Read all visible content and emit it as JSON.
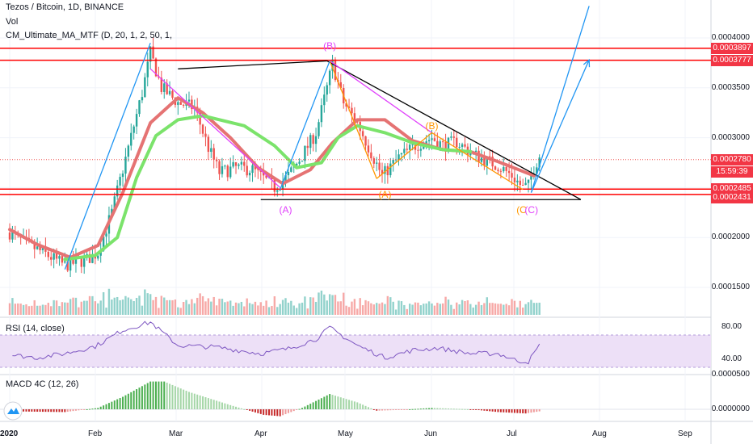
{
  "header": {
    "title": "Tezos / Bitcoin, 1D, BINANCE",
    "vol": "Vol",
    "ma_indicator": "CM_Ultimate_MA_MTF (D, 20, 1, 2, 50, 1,"
  },
  "panes": {
    "rsi_label": "RSI (14, close)",
    "macd_label": "MACD 4C (12, 26)"
  },
  "colors": {
    "up": "#26a69a",
    "down": "#ef5350",
    "ma_fast": "#e57373",
    "ma_slow": "#7be36b",
    "level_line": "#ff0000",
    "trend_line": "#000000",
    "projection": "#2196f3",
    "wave_magenta": "#e040fb",
    "wave_orange": "#ff9800",
    "rsi_line": "#7e57c2",
    "rsi_band": "#ede0f7"
  },
  "chart_data": [
    {
      "type": "candlestick",
      "title": "Tezos / Bitcoin, 1D, BINANCE",
      "x_ticks": [
        "2020",
        "Feb",
        "Mar",
        "Apr",
        "May",
        "Jun",
        "Jul",
        "Aug",
        "Sep"
      ],
      "y_ticks": [
        "0.0004000",
        "0.0003500",
        "0.0003000",
        "0.0002000",
        "0.0001500"
      ],
      "ylim": [
        0.000112,
        0.000425
      ],
      "price_tags": [
        {
          "value": "0.0003897",
          "color": "#f23645"
        },
        {
          "value": "0.0003777",
          "color": "#f23645"
        },
        {
          "value": "0.0002780",
          "color": "#f23645"
        },
        {
          "value": "15:59:39",
          "color": "#f23645"
        },
        {
          "value": "0.0002485",
          "color": "#f23645"
        },
        {
          "value": "0.0002431",
          "color": "#f23645"
        }
      ],
      "horizontal_levels": [
        0.0003897,
        0.0003777,
        0.0002485,
        0.0002431
      ],
      "current_price_line": 0.000278,
      "wave_labels": [
        {
          "text": "(B)",
          "color": "#e040fb",
          "date": "2020-04-25",
          "price": 0.000392
        },
        {
          "text": "(A)",
          "color": "#e040fb",
          "date": "2020-04-09",
          "price": 0.000228
        },
        {
          "text": "(B)",
          "color": "#ff9800",
          "date": "2020-06-01",
          "price": 0.000312
        },
        {
          "text": "(A)",
          "color": "#ff9800",
          "date": "2020-05-15",
          "price": 0.000243
        },
        {
          "text": "(C",
          "color": "#ff9800",
          "date": "2020-07-04",
          "price": 0.000228
        },
        {
          "text": "(C)",
          "color": "#e040fb",
          "date": "2020-07-07",
          "price": 0.000228
        }
      ],
      "series": [
        {
          "kind": "ma_fast",
          "points": [
            [
              "2019-12-31",
              0.000208
            ],
            [
              "2020-01-10",
              0.000193
            ],
            [
              "2020-01-22",
              0.00018
            ],
            [
              "2020-02-01",
              0.000192
            ],
            [
              "2020-02-10",
              0.000245
            ],
            [
              "2020-02-20",
              0.000315
            ],
            [
              "2020-03-01",
              0.00034
            ],
            [
              "2020-03-10",
              0.000325
            ],
            [
              "2020-03-20",
              0.0003
            ],
            [
              "2020-03-30",
              0.00027
            ],
            [
              "2020-04-08",
              0.000254
            ],
            [
              "2020-04-18",
              0.000268
            ],
            [
              "2020-04-26",
              0.000295
            ],
            [
              "2020-05-05",
              0.000318
            ],
            [
              "2020-05-15",
              0.000318
            ],
            [
              "2020-05-25",
              0.000297
            ],
            [
              "2020-06-05",
              0.000288
            ],
            [
              "2020-06-15",
              0.000286
            ],
            [
              "2020-06-25",
              0.000276
            ],
            [
              "2020-07-08",
              0.000262
            ]
          ]
        },
        {
          "kind": "ma_slow",
          "points": [
            [
              "2020-01-20",
              0.000178
            ],
            [
              "2020-01-31",
              0.000182
            ],
            [
              "2020-02-08",
              0.0002
            ],
            [
              "2020-02-15",
              0.00026
            ],
            [
              "2020-02-22",
              0.000302
            ],
            [
              "2020-03-01",
              0.000318
            ],
            [
              "2020-03-10",
              0.000322
            ],
            [
              "2020-03-25",
              0.000312
            ],
            [
              "2020-04-05",
              0.000292
            ],
            [
              "2020-04-13",
              0.00027
            ],
            [
              "2020-04-22",
              0.000275
            ],
            [
              "2020-04-28",
              0.0003
            ],
            [
              "2020-05-05",
              0.000312
            ],
            [
              "2020-05-15",
              0.000305
            ],
            [
              "2020-05-25",
              0.000295
            ],
            [
              "2020-06-05",
              0.000288
            ],
            [
              "2020-06-15",
              0.000286
            ]
          ]
        }
      ],
      "trend_lines": [
        {
          "color": "#000000",
          "from": [
            "2020-03-01",
            0.000369
          ],
          "to": [
            "2020-04-24",
            0.000377
          ]
        },
        {
          "color": "#000000",
          "from": [
            "2020-04-24",
            0.000377
          ],
          "to": [
            "2020-07-25",
            0.000238
          ]
        },
        {
          "color": "#000000",
          "from": [
            "2020-03-31",
            0.000238
          ],
          "to": [
            "2020-07-25",
            0.000238
          ]
        },
        {
          "color": "#e040fb",
          "from": [
            "2020-02-20",
            0.000369
          ],
          "to": [
            "2020-04-07",
            0.00025
          ]
        },
        {
          "color": "#e040fb",
          "from": [
            "2020-04-25",
            0.000377
          ],
          "to": [
            "2020-06-01",
            0.000305
          ]
        },
        {
          "color": "#ff9800",
          "from": [
            "2020-04-25",
            0.000377
          ],
          "to": [
            "2020-05-12",
            0.000259
          ]
        },
        {
          "color": "#ff9800",
          "from": [
            "2020-05-12",
            0.000259
          ],
          "to": [
            "2020-06-01",
            0.000305
          ]
        },
        {
          "color": "#ff9800",
          "from": [
            "2020-06-01",
            0.000305
          ],
          "to": [
            "2020-07-04",
            0.000248
          ]
        },
        {
          "color": "#2196f3",
          "from": [
            "2020-01-20",
            0.000168
          ],
          "to": [
            "2020-02-20",
            0.000395
          ]
        },
        {
          "color": "#2196f3",
          "from": [
            "2020-04-07",
            0.000248
          ],
          "to": [
            "2020-04-25",
            0.000377
          ]
        },
        {
          "color": "#2196f3",
          "from": [
            "2020-07-07",
            0.000245
          ],
          "to": [
            "2020-07-28",
            0.000432
          ]
        },
        {
          "color": "#2196f3",
          "from": [
            "2020-07-07",
            0.000245
          ],
          "to": [
            "2020-07-28",
            0.000378
          ]
        }
      ]
    },
    {
      "type": "bar",
      "title": "Vol",
      "note": "volume bars, relative heights"
    },
    {
      "type": "line",
      "title": "RSI (14, close)",
      "y_ticks": [
        "80.00",
        "40.00"
      ],
      "ylim": [
        25,
        90
      ],
      "band": [
        30,
        70
      ],
      "series": [
        {
          "points": [
            [
              "2020-01-01",
              45
            ],
            [
              "2020-01-10",
              42
            ],
            [
              "2020-01-20",
              47
            ],
            [
              "2020-01-31",
              56
            ],
            [
              "2020-02-10",
              76
            ],
            [
              "2020-02-20",
              86
            ],
            [
              "2020-03-01",
              57
            ],
            [
              "2020-03-15",
              55
            ],
            [
              "2020-03-31",
              47
            ],
            [
              "2020-04-10",
              53
            ],
            [
              "2020-04-20",
              65
            ],
            [
              "2020-04-25",
              79
            ],
            [
              "2020-05-05",
              57
            ],
            [
              "2020-05-15",
              42
            ],
            [
              "2020-05-25",
              51
            ],
            [
              "2020-06-03",
              54
            ],
            [
              "2020-06-15",
              47
            ],
            [
              "2020-06-25",
              47
            ],
            [
              "2020-07-02",
              38
            ],
            [
              "2020-07-06",
              37
            ],
            [
              "2020-07-08",
              47
            ],
            [
              "2020-07-10",
              57
            ]
          ]
        }
      ]
    },
    {
      "type": "bar",
      "title": "MACD 4C (12, 26)",
      "y_ticks": [
        "0.0000500",
        "0.0000000"
      ],
      "ylim": [
        -1.5e-05,
        5.5e-05
      ]
    }
  ]
}
